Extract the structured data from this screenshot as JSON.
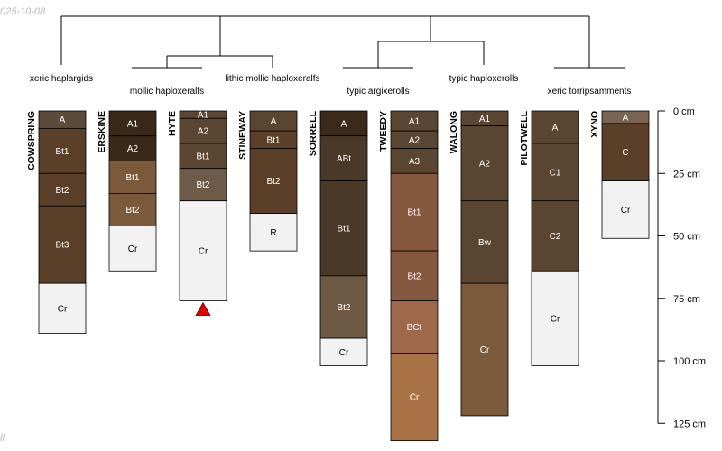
{
  "watermark": {
    "date": "025-10-08",
    "corner": "ll"
  },
  "depth_axis": {
    "unit": "cm",
    "ticks": [
      {
        "depth": 0,
        "label": "0 cm"
      },
      {
        "depth": 25,
        "label": "25 cm"
      },
      {
        "depth": 50,
        "label": "50 cm"
      },
      {
        "depth": 75,
        "label": "75 cm"
      },
      {
        "depth": 100,
        "label": "100 cm"
      },
      {
        "depth": 125,
        "label": "125 cm"
      }
    ]
  },
  "groups": [
    {
      "label": "xeric haplargids"
    },
    {
      "label": "mollic haploxeralfs"
    },
    {
      "label": "lithic mollic haploxeralfs"
    },
    {
      "label": "typic argixerolls"
    },
    {
      "label": "typic haploxerolls"
    },
    {
      "label": "xeric torripsamments"
    }
  ],
  "profiles": [
    {
      "name": "COWSPRING",
      "horizons": [
        {
          "name": "A",
          "top": 0,
          "bottom": 7,
          "color": "#5c4a3a"
        },
        {
          "name": "Bt1",
          "top": 7,
          "bottom": 25,
          "color": "#5a4028"
        },
        {
          "name": "Bt2",
          "top": 25,
          "bottom": 38,
          "color": "#5a4028"
        },
        {
          "name": "Bt3",
          "top": 38,
          "bottom": 69,
          "color": "#5a4028"
        },
        {
          "name": "Cr",
          "top": 69,
          "bottom": 89,
          "color": "#f2f2f2"
        }
      ]
    },
    {
      "name": "ERSKINE",
      "horizons": [
        {
          "name": "A1",
          "top": 0,
          "bottom": 10,
          "color": "#3a2818"
        },
        {
          "name": "A2",
          "top": 10,
          "bottom": 20,
          "color": "#3a2818"
        },
        {
          "name": "Bt1",
          "top": 20,
          "bottom": 33,
          "color": "#7a5a3a"
        },
        {
          "name": "Bt2",
          "top": 33,
          "bottom": 46,
          "color": "#7a5a3a"
        },
        {
          "name": "Cr",
          "top": 46,
          "bottom": 64,
          "color": "#f2f2f2"
        }
      ]
    },
    {
      "name": "HYTE",
      "horizons": [
        {
          "name": "A1",
          "top": 0,
          "bottom": 3,
          "color": "#5a4632"
        },
        {
          "name": "A2",
          "top": 3,
          "bottom": 13,
          "color": "#5a4632"
        },
        {
          "name": "Bt1",
          "top": 13,
          "bottom": 23,
          "color": "#5a4632"
        },
        {
          "name": "Bt2",
          "top": 23,
          "bottom": 36,
          "color": "#6e5a48"
        },
        {
          "name": "Cr",
          "top": 36,
          "bottom": 76,
          "color": "#f2f2f2"
        }
      ],
      "marker": {
        "depth": 76,
        "color": "#e00000"
      }
    },
    {
      "name": "STINEWAY",
      "horizons": [
        {
          "name": "A",
          "top": 0,
          "bottom": 8,
          "color": "#5a4630"
        },
        {
          "name": "Bt1",
          "top": 8,
          "bottom": 15,
          "color": "#5a4028"
        },
        {
          "name": "Bt2",
          "top": 15,
          "bottom": 41,
          "color": "#5a4028"
        },
        {
          "name": "R",
          "top": 41,
          "bottom": 56,
          "color": "#f2f2f2"
        }
      ]
    },
    {
      "name": "SORRELL",
      "horizons": [
        {
          "name": "A",
          "top": 0,
          "bottom": 10,
          "color": "#3a2a1a"
        },
        {
          "name": "ABt",
          "top": 10,
          "bottom": 28,
          "color": "#4a3828"
        },
        {
          "name": "Bt1",
          "top": 28,
          "bottom": 66,
          "color": "#4a3828"
        },
        {
          "name": "Bt2",
          "top": 66,
          "bottom": 91,
          "color": "#6e5a44"
        },
        {
          "name": "Cr",
          "top": 91,
          "bottom": 102,
          "color": "#f2f2f2"
        }
      ]
    },
    {
      "name": "TWEEDY",
      "horizons": [
        {
          "name": "A1",
          "top": 0,
          "bottom": 8,
          "color": "#5a4632"
        },
        {
          "name": "A2",
          "top": 8,
          "bottom": 15,
          "color": "#5a4632"
        },
        {
          "name": "A3",
          "top": 15,
          "bottom": 25,
          "color": "#5a4632"
        },
        {
          "name": "Bt1",
          "top": 25,
          "bottom": 56,
          "color": "#85583f"
        },
        {
          "name": "Bt2",
          "top": 56,
          "bottom": 76,
          "color": "#85583f"
        },
        {
          "name": "BCt",
          "top": 76,
          "bottom": 97,
          "color": "#a0684a"
        },
        {
          "name": "Cr",
          "top": 97,
          "bottom": 132,
          "color": "#a87244"
        }
      ]
    },
    {
      "name": "WALONG",
      "horizons": [
        {
          "name": "A1",
          "top": 0,
          "bottom": 6,
          "color": "#5a4630"
        },
        {
          "name": "A2",
          "top": 6,
          "bottom": 36,
          "color": "#5a4630"
        },
        {
          "name": "Bw",
          "top": 36,
          "bottom": 69,
          "color": "#5a4630"
        },
        {
          "name": "Cr",
          "top": 69,
          "bottom": 122,
          "color": "#7a5a3a"
        }
      ]
    },
    {
      "name": "PILOTWELL",
      "horizons": [
        {
          "name": "A",
          "top": 0,
          "bottom": 13,
          "color": "#5a4630"
        },
        {
          "name": "C1",
          "top": 13,
          "bottom": 36,
          "color": "#5a4630"
        },
        {
          "name": "C2",
          "top": 36,
          "bottom": 64,
          "color": "#5a4630"
        },
        {
          "name": "Cr",
          "top": 64,
          "bottom": 102,
          "color": "#f2f2f2"
        }
      ]
    },
    {
      "name": "XYNO",
      "horizons": [
        {
          "name": "A",
          "top": 0,
          "bottom": 5,
          "color": "#7a6454"
        },
        {
          "name": "C",
          "top": 5,
          "bottom": 28,
          "color": "#5a4028"
        },
        {
          "name": "Cr",
          "top": 28,
          "bottom": 51,
          "color": "#f2f2f2"
        }
      ]
    }
  ],
  "dendrogram": {
    "description_visible": false
  }
}
